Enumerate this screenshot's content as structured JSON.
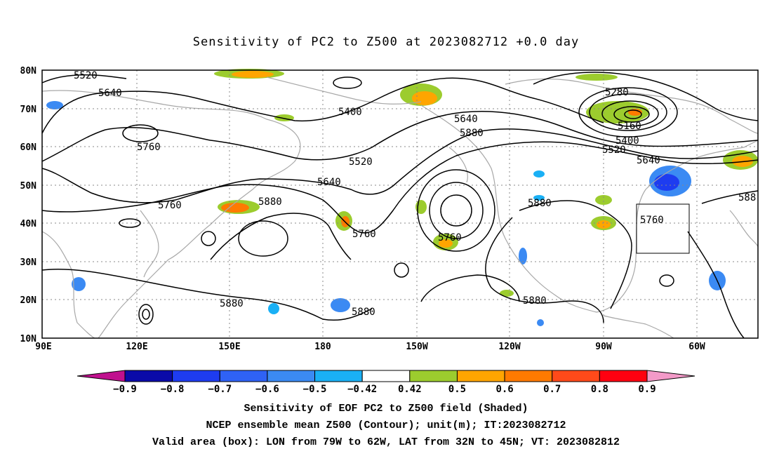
{
  "title": "Sensitivity of PC2 to Z500 at 2023082712 +0.0 day",
  "map": {
    "lat_ticks": [
      "80N",
      "70N",
      "60N",
      "50N",
      "40N",
      "30N",
      "20N",
      "10N"
    ],
    "lon_ticks": [
      "90E",
      "120E",
      "150E",
      "180",
      "150W",
      "120W",
      "90W",
      "60W"
    ],
    "lon_range": [
      90,
      310
    ],
    "lat_range": [
      10,
      80
    ],
    "valid_box": {
      "lon_west": -79,
      "lon_east": -62,
      "lat_south": 32,
      "lat_north": 45
    },
    "contour_labels": [
      "5520",
      "5640",
      "5760",
      "5400",
      "5520",
      "5640",
      "5760",
      "5880",
      "5880",
      "5760",
      "5760",
      "5880",
      "5880",
      "5880",
      "5880",
      "5280",
      "5160",
      "5400",
      "5520",
      "5640",
      "5760",
      "588"
    ],
    "contour_color": "#000000",
    "coast_color": "#a8a8a8",
    "grid_style": "dotted"
  },
  "colorbar": {
    "labels": [
      "-0.9",
      "-0.8",
      "-0.7",
      "-0.6",
      "-0.5",
      "-0.42",
      "0.42",
      "0.5",
      "0.6",
      "0.7",
      "0.8",
      "0.9"
    ],
    "colors": [
      "#c0108e",
      "#0a0aa8",
      "#1e3cf0",
      "#2f62f5",
      "#3b8af3",
      "#1ab0f5",
      "#ffffff",
      "#9ccc2e",
      "#ffa500",
      "#ff7a00",
      "#ff4a1a",
      "#ff0010",
      "#f39ac8"
    ]
  },
  "captions": [
    "Sensitivity of EOF PC2 to Z500 field (Shaded)",
    "NCEP ensemble mean Z500 (Contour); unit(m); IT:2023082712",
    "Valid area (box): LON from 79W to 62W, LAT from 32N to 45N; VT: 2023082812"
  ]
}
